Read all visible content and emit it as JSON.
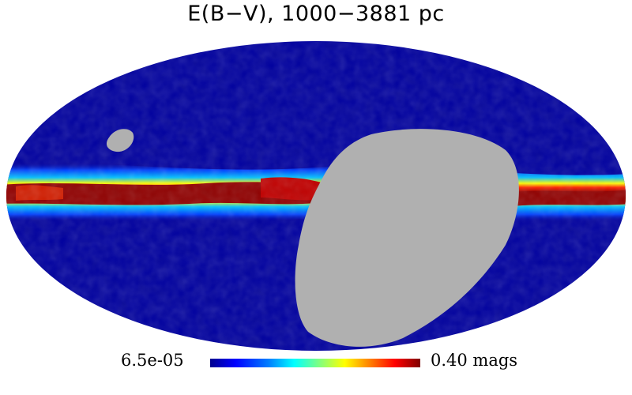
{
  "title": "E(B−V), 1000−3881 pc",
  "projection": "Mollweide",
  "colorbar": {
    "min_label": "6.5e-05",
    "max_label": "0.40 mags",
    "colormap": "jet"
  },
  "colors": {
    "low_extinction": "#00009f",
    "high_extinction": "#8b0000",
    "masked_region": "#b0b0b0",
    "background": "#ffffff"
  }
}
